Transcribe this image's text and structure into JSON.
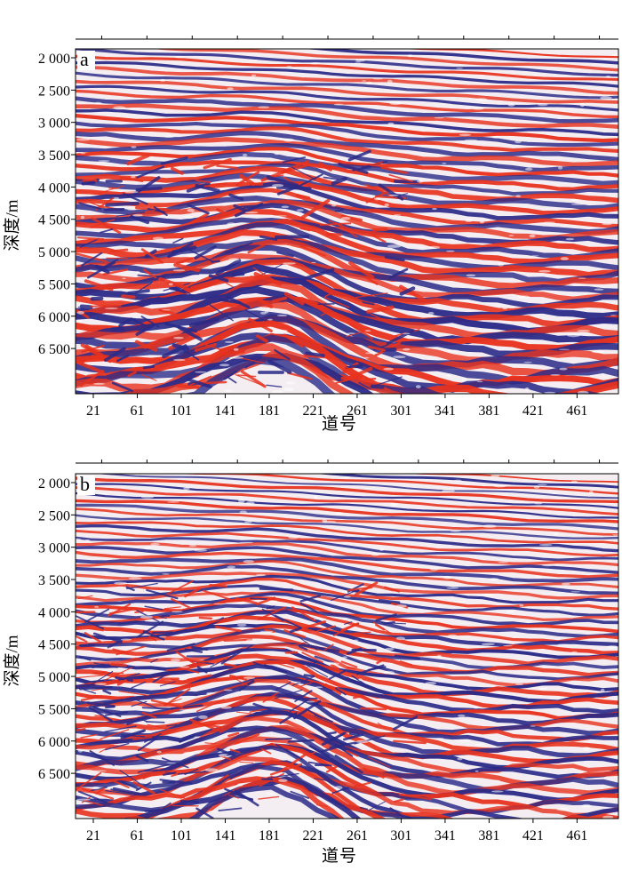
{
  "panels": [
    {
      "label": "a",
      "y_label": "深度/m",
      "x_label": "道号",
      "y_ticks": [
        "2 000",
        "2 500",
        "3 000",
        "3 500",
        "4 000",
        "4 500",
        "5 000",
        "5 500",
        "6 000",
        "6 500"
      ],
      "x_ticks": [
        "21",
        "61",
        "101",
        "141",
        "181",
        "221",
        "261",
        "301",
        "341",
        "381",
        "421",
        "461"
      ]
    },
    {
      "label": "b",
      "y_label": "深度/m",
      "x_label": "道号",
      "y_ticks": [
        "2 000",
        "2 500",
        "3 000",
        "3 500",
        "4 000",
        "4 500",
        "5 000",
        "5 500",
        "6 000",
        "6 500"
      ],
      "x_ticks": [
        "21",
        "61",
        "101",
        "141",
        "181",
        "221",
        "261",
        "301",
        "341",
        "381",
        "421",
        "461"
      ]
    }
  ],
  "colors": {
    "positive": "#e8321e",
    "negative": "#2a2a88",
    "background": "#ffffff"
  }
}
